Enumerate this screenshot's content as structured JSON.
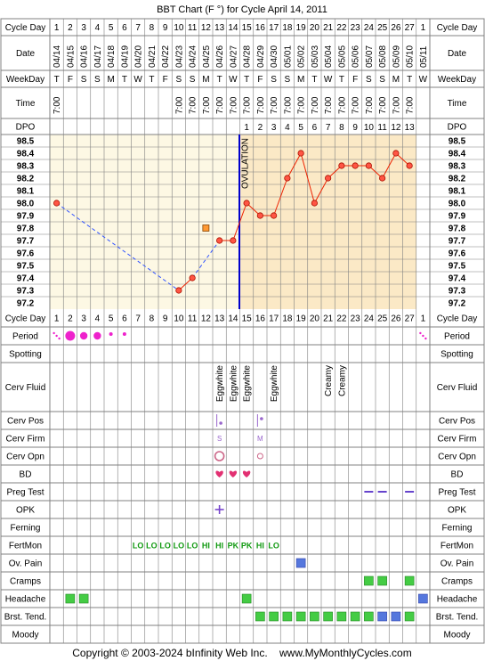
{
  "title": "BBT Chart (F °) for Cycle April 14, 2011",
  "footer": "Copyright © 2003-2024 bInfinity Web Inc.    www.MyMonthlyCycles.com",
  "labels": {
    "cycle_day": "Cycle Day",
    "date": "Date",
    "weekday": "WeekDay",
    "time": "Time",
    "dpo": "DPO",
    "period": "Period",
    "spotting": "Spotting",
    "cerv_fluid": "Cerv Fluid",
    "cerv_pos": "Cerv Pos",
    "cerv_firm": "Cerv Firm",
    "cerv_opn": "Cerv Opn",
    "bd": "BD",
    "preg_test": "Preg Test",
    "opk": "OPK",
    "ferning": "Ferning",
    "fertmon": "FertMon",
    "ov_pain": "Ov. Pain",
    "cramps": "Cramps",
    "headache": "Headache",
    "brst_tend": "Brst. Tend.",
    "moody": "Moody"
  },
  "colors": {
    "grid": "#808080",
    "chart_bg": "#fdf8e4",
    "after_ov_bg": "#fbe9c6",
    "line": "#ee2200",
    "point_fill": "#ff5544",
    "ovulation_line": "#0000cc",
    "dashed_line": "#3355ff",
    "period": "#ee22cc",
    "bd_heart": "#e23072",
    "fertmon": "#119911",
    "green_box": "#44cc44",
    "blue_box": "#5577dd",
    "preg_test": "#6644cc",
    "opk": "#7744cc"
  },
  "cycle_days": [
    "1",
    "2",
    "3",
    "4",
    "5",
    "6",
    "7",
    "8",
    "9",
    "10",
    "11",
    "12",
    "13",
    "14",
    "15",
    "16",
    "17",
    "18",
    "19",
    "20",
    "21",
    "22",
    "23",
    "24",
    "25",
    "26",
    "27",
    "1"
  ],
  "dates": [
    "04/14",
    "04/15",
    "04/16",
    "04/17",
    "04/18",
    "04/19",
    "04/20",
    "04/21",
    "04/22",
    "04/23",
    "04/24",
    "04/25",
    "04/26",
    "04/27",
    "04/28",
    "04/29",
    "04/30",
    "05/01",
    "05/02",
    "05/03",
    "05/04",
    "05/05",
    "05/06",
    "05/07",
    "05/08",
    "05/09",
    "05/10",
    "05/11"
  ],
  "weekdays": [
    "T",
    "F",
    "S",
    "S",
    "M",
    "T",
    "W",
    "T",
    "F",
    "S",
    "S",
    "M",
    "T",
    "W",
    "T",
    "F",
    "S",
    "S",
    "M",
    "T",
    "W",
    "T",
    "F",
    "S",
    "S",
    "M",
    "T",
    "W"
  ],
  "times": [
    "7:00",
    "",
    "",
    "",
    "",
    "",
    "",
    "",
    "",
    "7:00",
    "7:00",
    "7:00",
    "7:00",
    "7:00",
    "7:00",
    "7:00",
    "7:00",
    "7:00",
    "7:00",
    "7:00",
    "7:00",
    "7:00",
    "7:00",
    "7:00",
    "7:00",
    "7:00",
    "7:00",
    ""
  ],
  "dpo": [
    "",
    "",
    "",
    "",
    "",
    "",
    "",
    "",
    "",
    "",
    "",
    "",
    "",
    "",
    "1",
    "2",
    "3",
    "4",
    "5",
    "6",
    "7",
    "8",
    "9",
    "10",
    "11",
    "12",
    "13",
    ""
  ],
  "ovulation_label": "OVULATION",
  "chart_data": {
    "type": "line",
    "title": "BBT Chart (F °) for Cycle April 14, 2011",
    "y_ticks": [
      "98.5",
      "98.4",
      "98.3",
      "98.2",
      "98.1",
      "98.0",
      "97.9",
      "97.8",
      "97.7",
      "97.6",
      "97.5",
      "97.4",
      "97.3",
      "97.2"
    ],
    "ylim": [
      97.2,
      98.5
    ],
    "ovulation_day": 14,
    "points": [
      {
        "day": 1,
        "temp": 98.0
      },
      {
        "day": 10,
        "temp": 97.3
      },
      {
        "day": 11,
        "temp": 97.4
      },
      {
        "day": 13,
        "temp": 97.7
      },
      {
        "day": 14,
        "temp": 97.7
      },
      {
        "day": 15,
        "temp": 98.0
      },
      {
        "day": 16,
        "temp": 97.9
      },
      {
        "day": 17,
        "temp": 97.9
      },
      {
        "day": 18,
        "temp": 98.2
      },
      {
        "day": 19,
        "temp": 98.4
      },
      {
        "day": 20,
        "temp": 98.0
      },
      {
        "day": 21,
        "temp": 98.2
      },
      {
        "day": 22,
        "temp": 98.3
      },
      {
        "day": 23,
        "temp": 98.3
      },
      {
        "day": 24,
        "temp": 98.3
      },
      {
        "day": 25,
        "temp": 98.2
      },
      {
        "day": 26,
        "temp": 98.4
      },
      {
        "day": 27,
        "temp": 98.3
      }
    ],
    "dashed_segments": [
      [
        1,
        10
      ],
      [
        11,
        13
      ]
    ],
    "excluded": [
      {
        "day": 12,
        "temp": 97.8
      }
    ]
  },
  "period": [
    {
      "day": 1,
      "size": "dots"
    },
    {
      "day": 2,
      "size": "large"
    },
    {
      "day": 3,
      "size": "medium"
    },
    {
      "day": 4,
      "size": "medium"
    },
    {
      "day": 5,
      "size": "small"
    },
    {
      "day": 6,
      "size": "small"
    },
    {
      "day": 28,
      "size": "dots"
    }
  ],
  "cerv_fluid": [
    {
      "day": 13,
      "text": "Eggwhite"
    },
    {
      "day": 14,
      "text": "Eggwhite"
    },
    {
      "day": 15,
      "text": "Eggwhite"
    },
    {
      "day": 17,
      "text": "Eggwhite"
    },
    {
      "day": 21,
      "text": "Creamy"
    },
    {
      "day": 22,
      "text": "Creamy"
    }
  ],
  "cerv_pos": [
    {
      "day": 13,
      "position": "low"
    },
    {
      "day": 16,
      "position": "medium"
    }
  ],
  "cerv_firm": [
    {
      "day": 13,
      "text": "S"
    },
    {
      "day": 16,
      "text": "M"
    }
  ],
  "cerv_opn": [
    {
      "day": 13,
      "size": "large"
    },
    {
      "day": 16,
      "size": "small"
    }
  ],
  "bd_days": [
    13,
    14,
    15
  ],
  "preg_test_days": [
    24,
    25,
    27
  ],
  "opk_days": [
    13
  ],
  "fertmon": [
    {
      "day": 7,
      "text": "LO"
    },
    {
      "day": 8,
      "text": "LO"
    },
    {
      "day": 9,
      "text": "LO"
    },
    {
      "day": 10,
      "text": "LO"
    },
    {
      "day": 11,
      "text": "LO"
    },
    {
      "day": 12,
      "text": "HI"
    },
    {
      "day": 13,
      "text": "HI"
    },
    {
      "day": 14,
      "text": "PK"
    },
    {
      "day": 15,
      "text": "PK"
    },
    {
      "day": 16,
      "text": "HI"
    },
    {
      "day": 17,
      "text": "LO"
    }
  ],
  "ov_pain": [
    {
      "day": 19,
      "color": "blue"
    }
  ],
  "cramps": [
    {
      "day": 24,
      "color": "green"
    },
    {
      "day": 25,
      "color": "green"
    },
    {
      "day": 27,
      "color": "green"
    }
  ],
  "headache": [
    {
      "day": 2,
      "color": "green"
    },
    {
      "day": 3,
      "color": "green"
    },
    {
      "day": 15,
      "color": "green"
    },
    {
      "day": 28,
      "color": "blue"
    }
  ],
  "brst_tend": [
    {
      "day": 16,
      "color": "green"
    },
    {
      "day": 17,
      "color": "green"
    },
    {
      "day": 18,
      "color": "green"
    },
    {
      "day": 19,
      "color": "green"
    },
    {
      "day": 20,
      "color": "green"
    },
    {
      "day": 21,
      "color": "green"
    },
    {
      "day": 22,
      "color": "green"
    },
    {
      "day": 23,
      "color": "green"
    },
    {
      "day": 24,
      "color": "green"
    },
    {
      "day": 25,
      "color": "blue"
    },
    {
      "day": 26,
      "color": "blue"
    },
    {
      "day": 27,
      "color": "green"
    }
  ]
}
